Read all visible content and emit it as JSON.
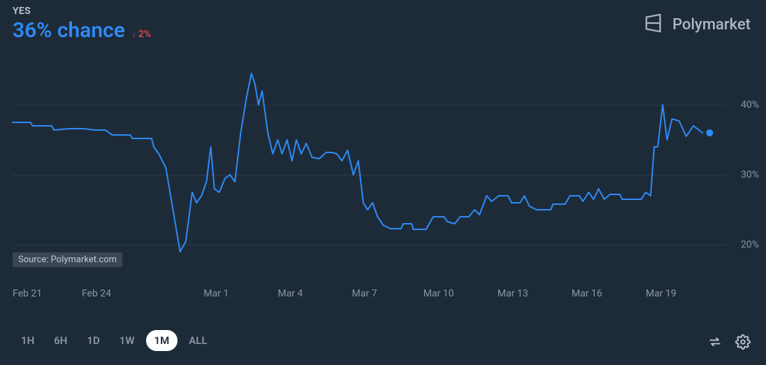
{
  "header": {
    "outcome_label": "YES",
    "chance_text": "36% chance",
    "chance_color": "#2f8af5",
    "delta_arrow": "↓",
    "delta_text": "2%",
    "delta_color": "#e24c4c"
  },
  "brand": {
    "name": "Polymarket",
    "icon_color": "#aeb7c0"
  },
  "chart": {
    "type": "line",
    "background_color": "#1d2b39",
    "grid_color": "#2b3a49",
    "line_color": "#2f8af5",
    "line_width": 2,
    "endpoint_marker_color": "#2f8af5",
    "endpoint_marker_radius": 5,
    "y_min": 15,
    "y_max": 45,
    "y_ticks": [
      {
        "value": 20,
        "label": "20%"
      },
      {
        "value": 30,
        "label": "30%"
      },
      {
        "value": 40,
        "label": "40%"
      }
    ],
    "x_ticks": [
      {
        "t": 0.0,
        "label": "Feb 21"
      },
      {
        "t": 0.1,
        "label": "Feb 24"
      },
      {
        "t": 0.268,
        "label": "Mar 1"
      },
      {
        "t": 0.372,
        "label": "Mar 4"
      },
      {
        "t": 0.476,
        "label": "Mar 7"
      },
      {
        "t": 0.58,
        "label": "Mar 10"
      },
      {
        "t": 0.684,
        "label": "Mar 13"
      },
      {
        "t": 0.788,
        "label": "Mar 16"
      },
      {
        "t": 0.892,
        "label": "Mar 19"
      }
    ],
    "series": [
      {
        "t": 0.0,
        "v": 37.5
      },
      {
        "t": 0.025,
        "v": 37.5
      },
      {
        "t": 0.028,
        "v": 37.0
      },
      {
        "t": 0.055,
        "v": 37.0
      },
      {
        "t": 0.058,
        "v": 36.4
      },
      {
        "t": 0.08,
        "v": 36.6
      },
      {
        "t": 0.1,
        "v": 36.6
      },
      {
        "t": 0.115,
        "v": 36.4
      },
      {
        "t": 0.13,
        "v": 36.4
      },
      {
        "t": 0.14,
        "v": 35.7
      },
      {
        "t": 0.165,
        "v": 35.7
      },
      {
        "t": 0.168,
        "v": 35.2
      },
      {
        "t": 0.195,
        "v": 35.2
      },
      {
        "t": 0.198,
        "v": 34.0
      },
      {
        "t": 0.205,
        "v": 33.0
      },
      {
        "t": 0.215,
        "v": 31.0
      },
      {
        "t": 0.225,
        "v": 25.0
      },
      {
        "t": 0.235,
        "v": 19.0
      },
      {
        "t": 0.243,
        "v": 20.5
      },
      {
        "t": 0.252,
        "v": 27.5
      },
      {
        "t": 0.258,
        "v": 26.0
      },
      {
        "t": 0.265,
        "v": 27.0
      },
      {
        "t": 0.272,
        "v": 29.0
      },
      {
        "t": 0.278,
        "v": 34.0
      },
      {
        "t": 0.283,
        "v": 28.0
      },
      {
        "t": 0.29,
        "v": 27.5
      },
      {
        "t": 0.298,
        "v": 29.5
      },
      {
        "t": 0.305,
        "v": 30.0
      },
      {
        "t": 0.312,
        "v": 29.0
      },
      {
        "t": 0.32,
        "v": 36.0
      },
      {
        "t": 0.328,
        "v": 41.0
      },
      {
        "t": 0.335,
        "v": 44.5
      },
      {
        "t": 0.34,
        "v": 43.0
      },
      {
        "t": 0.345,
        "v": 40.0
      },
      {
        "t": 0.35,
        "v": 42.0
      },
      {
        "t": 0.358,
        "v": 36.0
      },
      {
        "t": 0.365,
        "v": 33.0
      },
      {
        "t": 0.372,
        "v": 35.0
      },
      {
        "t": 0.378,
        "v": 33.0
      },
      {
        "t": 0.385,
        "v": 35.0
      },
      {
        "t": 0.392,
        "v": 32.0
      },
      {
        "t": 0.398,
        "v": 35.0
      },
      {
        "t": 0.405,
        "v": 33.0
      },
      {
        "t": 0.412,
        "v": 34.5
      },
      {
        "t": 0.42,
        "v": 32.5
      },
      {
        "t": 0.43,
        "v": 32.3
      },
      {
        "t": 0.44,
        "v": 33.2
      },
      {
        "t": 0.448,
        "v": 33.2
      },
      {
        "t": 0.455,
        "v": 33.0
      },
      {
        "t": 0.462,
        "v": 32.0
      },
      {
        "t": 0.47,
        "v": 33.5
      },
      {
        "t": 0.478,
        "v": 30.0
      },
      {
        "t": 0.485,
        "v": 32.0
      },
      {
        "t": 0.492,
        "v": 26.0
      },
      {
        "t": 0.498,
        "v": 25.0
      },
      {
        "t": 0.505,
        "v": 26.0
      },
      {
        "t": 0.512,
        "v": 24.0
      },
      {
        "t": 0.52,
        "v": 22.8
      },
      {
        "t": 0.53,
        "v": 22.3
      },
      {
        "t": 0.545,
        "v": 22.3
      },
      {
        "t": 0.548,
        "v": 23.0
      },
      {
        "t": 0.56,
        "v": 23.0
      },
      {
        "t": 0.562,
        "v": 22.2
      },
      {
        "t": 0.58,
        "v": 22.2
      },
      {
        "t": 0.59,
        "v": 24.0
      },
      {
        "t": 0.605,
        "v": 24.0
      },
      {
        "t": 0.61,
        "v": 23.3
      },
      {
        "t": 0.62,
        "v": 23.0
      },
      {
        "t": 0.628,
        "v": 24.0
      },
      {
        "t": 0.64,
        "v": 24.0
      },
      {
        "t": 0.648,
        "v": 25.0
      },
      {
        "t": 0.655,
        "v": 24.3
      },
      {
        "t": 0.665,
        "v": 27.0
      },
      {
        "t": 0.672,
        "v": 26.2
      },
      {
        "t": 0.682,
        "v": 27.0
      },
      {
        "t": 0.695,
        "v": 27.0
      },
      {
        "t": 0.7,
        "v": 26.0
      },
      {
        "t": 0.712,
        "v": 26.0
      },
      {
        "t": 0.718,
        "v": 27.0
      },
      {
        "t": 0.725,
        "v": 25.5
      },
      {
        "t": 0.735,
        "v": 25.0
      },
      {
        "t": 0.755,
        "v": 25.0
      },
      {
        "t": 0.758,
        "v": 25.8
      },
      {
        "t": 0.775,
        "v": 25.8
      },
      {
        "t": 0.782,
        "v": 27.0
      },
      {
        "t": 0.795,
        "v": 27.0
      },
      {
        "t": 0.8,
        "v": 26.2
      },
      {
        "t": 0.808,
        "v": 27.5
      },
      {
        "t": 0.815,
        "v": 26.5
      },
      {
        "t": 0.822,
        "v": 28.0
      },
      {
        "t": 0.83,
        "v": 26.5
      },
      {
        "t": 0.838,
        "v": 27.2
      },
      {
        "t": 0.852,
        "v": 27.2
      },
      {
        "t": 0.855,
        "v": 26.5
      },
      {
        "t": 0.882,
        "v": 26.5
      },
      {
        "t": 0.888,
        "v": 27.5
      },
      {
        "t": 0.895,
        "v": 27.0
      },
      {
        "t": 0.9,
        "v": 34.0
      },
      {
        "t": 0.905,
        "v": 34.0
      },
      {
        "t": 0.912,
        "v": 40.0
      },
      {
        "t": 0.918,
        "v": 35.0
      },
      {
        "t": 0.925,
        "v": 38.0
      },
      {
        "t": 0.935,
        "v": 37.7
      },
      {
        "t": 0.945,
        "v": 35.5
      },
      {
        "t": 0.955,
        "v": 37.0
      },
      {
        "t": 0.968,
        "v": 36.0
      }
    ],
    "source_badge": "Source: Polymarket.com"
  },
  "ranges": {
    "items": [
      "1H",
      "6H",
      "1D",
      "1W",
      "1M",
      "ALL"
    ],
    "active_index": 4
  },
  "footer_icons": {
    "swap_label": "swap",
    "settings_label": "settings"
  }
}
